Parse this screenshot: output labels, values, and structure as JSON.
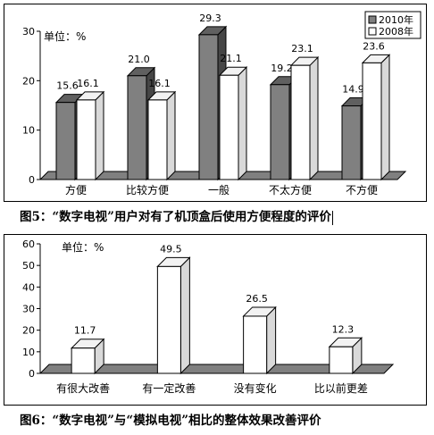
{
  "chart_data": [
    {
      "type": "bar",
      "unit_label": "单位：%",
      "categories": [
        "方便",
        "比较方便",
        "一般",
        "不太方便",
        "不方便"
      ],
      "series": [
        {
          "name": "2010年",
          "color": "#808080",
          "values": [
            15.6,
            21.0,
            29.3,
            19.2,
            14.9
          ]
        },
        {
          "name": "2008年",
          "color": "#ffffff",
          "values": [
            16.1,
            16.1,
            21.1,
            23.1,
            23.6
          ]
        }
      ],
      "ylim": [
        0,
        30
      ],
      "yticks": [
        0,
        10,
        20,
        30
      ],
      "legend_position": "top-right",
      "grid": false,
      "caption": "图5：“数字电视”用户对有了机顶盒后使用方便程度的评价"
    },
    {
      "type": "bar",
      "unit_label": "单位：%",
      "categories": [
        "有很大改善",
        "有一定改善",
        "没有变化",
        "比以前更差"
      ],
      "series": [
        {
          "color": "#ffffff",
          "values": [
            11.7,
            49.5,
            26.5,
            12.3
          ]
        }
      ],
      "ylim": [
        0,
        60
      ],
      "yticks": [
        0,
        10,
        20,
        30,
        40,
        50,
        60
      ],
      "grid": false,
      "caption": "图6：“数字电视”与“模拟电视”相比的整体效果改善评价"
    }
  ]
}
